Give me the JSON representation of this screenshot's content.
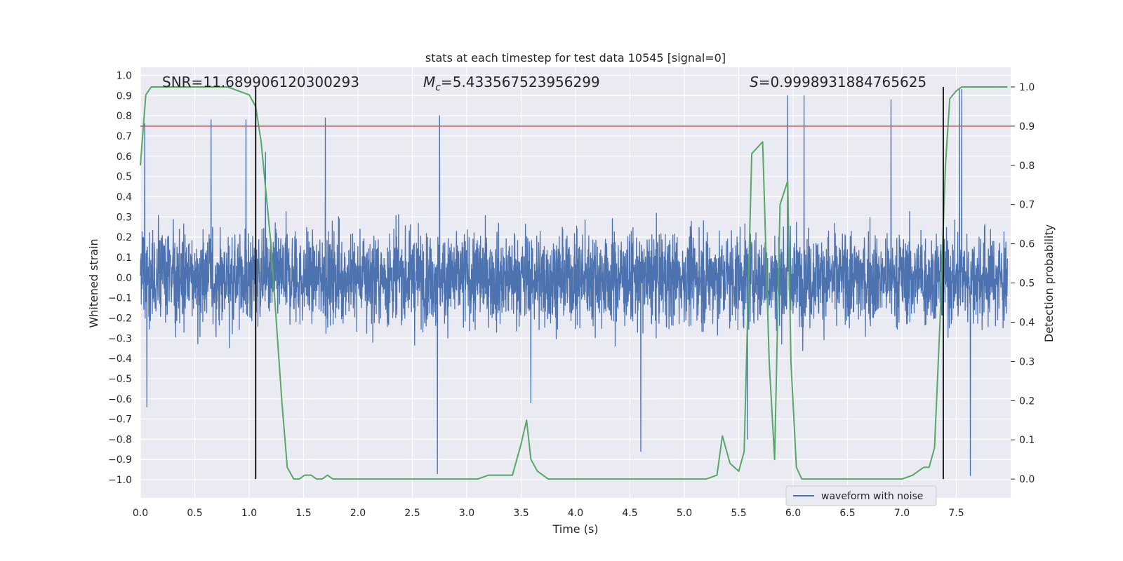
{
  "chart_data": {
    "type": "line",
    "title": "stats at each timestep for test data 10545 [signal=0]",
    "xlabel": "Time (s)",
    "ylabel_left": "Whitened strain",
    "ylabel_right": "Detection probability",
    "xlim": [
      0.0,
      8.0
    ],
    "ylim_left": [
      -1.09,
      1.04
    ],
    "ylim_right": [
      -0.048,
      1.05
    ],
    "x_ticks": [
      "0.0",
      "0.5",
      "1.0",
      "1.5",
      "2.0",
      "2.5",
      "3.0",
      "3.5",
      "4.0",
      "4.5",
      "5.0",
      "5.5",
      "6.0",
      "6.5",
      "7.0",
      "7.5"
    ],
    "y_left_ticks": [
      "1.0",
      "0.9",
      "0.8",
      "0.7",
      "0.6",
      "0.5",
      "0.4",
      "0.3",
      "0.2",
      "0.1",
      "0.0",
      "-0.1",
      "-0.2",
      "-0.3",
      "-0.4",
      "-0.5",
      "-0.6",
      "-0.7",
      "-0.8",
      "-0.9",
      "-1.0"
    ],
    "y_right_ticks": [
      "1.0",
      "0.9",
      "0.8",
      "0.7",
      "0.6",
      "0.5",
      "0.4",
      "0.3",
      "0.2",
      "0.1",
      "0.0"
    ],
    "grid": true,
    "background": "#eaeaf2",
    "annotations": {
      "snr": "SNR=11.689906120300293",
      "mc_symbol": "M",
      "mc_sub": "c",
      "mc_value": "=5.433567523956299",
      "s_symbol": "S",
      "s_value": "=0.9998931884765625"
    },
    "legend": {
      "label": "waveform with noise",
      "location": "lower-right"
    },
    "threshold": {
      "value_right": 0.9,
      "color": "#c44e52"
    },
    "vertical_markers": [
      1.06,
      7.38
    ],
    "series": [
      {
        "name": "waveform with noise",
        "axis": "left",
        "color": "#4c72b0",
        "envelope_note": "dense noise, values mostly within ±0.35, peaks to about ±1.0",
        "peaks": [
          {
            "x": 0.04,
            "y": 0.76
          },
          {
            "x": 0.06,
            "y": 0.81
          },
          {
            "x": 0.06,
            "y": -0.64
          },
          {
            "x": 0.65,
            "y": 0.78
          },
          {
            "x": 0.97,
            "y": 0.78
          },
          {
            "x": 1.15,
            "y": 0.62
          },
          {
            "x": 1.7,
            "y": 0.79
          },
          {
            "x": 2.75,
            "y": 0.8
          },
          {
            "x": 2.73,
            "y": -0.97
          },
          {
            "x": 3.59,
            "y": -0.62
          },
          {
            "x": 4.6,
            "y": -0.86
          },
          {
            "x": 5.58,
            "y": -0.8
          },
          {
            "x": 5.95,
            "y": 0.9
          },
          {
            "x": 6.1,
            "y": 0.9
          },
          {
            "x": 6.9,
            "y": 0.88
          },
          {
            "x": 7.53,
            "y": 0.93
          },
          {
            "x": 7.63,
            "y": -0.98
          },
          {
            "x": 7.55,
            "y": 0.93
          }
        ]
      },
      {
        "name": "",
        "axis": "right",
        "color": "#55a868",
        "x": [
          0.0,
          0.05,
          0.1,
          0.2,
          0.4,
          0.6,
          0.8,
          0.9,
          1.0,
          1.06,
          1.11,
          1.2,
          1.3,
          1.35,
          1.41,
          1.46,
          1.51,
          1.57,
          1.62,
          1.67,
          1.72,
          1.77,
          1.87,
          1.97,
          2.1,
          2.3,
          2.5,
          2.7,
          2.9,
          3.1,
          3.2,
          3.27,
          3.35,
          3.42,
          3.5,
          3.55,
          3.59,
          3.65,
          3.75,
          3.85,
          4.0,
          4.2,
          4.4,
          4.5,
          4.6,
          4.7,
          4.8,
          4.9,
          5.0,
          5.1,
          5.2,
          5.3,
          5.35,
          5.42,
          5.5,
          5.55,
          5.62,
          5.72,
          5.78,
          5.83,
          5.88,
          5.95,
          5.98,
          6.03,
          6.08,
          6.15,
          6.2,
          6.25,
          6.3,
          6.4,
          6.6,
          6.8,
          7.0,
          7.1,
          7.15,
          7.2,
          7.25,
          7.3,
          7.35,
          7.4,
          7.44,
          7.5,
          7.55,
          7.65,
          7.8,
          7.97
        ],
        "y": [
          0.8,
          0.98,
          1.0,
          1.0,
          1.0,
          1.0,
          1.0,
          0.99,
          0.98,
          0.95,
          0.86,
          0.6,
          0.2,
          0.03,
          0.0,
          0.0,
          0.01,
          0.01,
          0.0,
          0.0,
          0.01,
          0.0,
          0.0,
          0.0,
          0.0,
          0.0,
          0.0,
          0.0,
          0.0,
          0.0,
          0.01,
          0.01,
          0.01,
          0.01,
          0.09,
          0.15,
          0.05,
          0.02,
          0.0,
          0.0,
          0.0,
          0.0,
          0.0,
          0.0,
          0.0,
          0.0,
          0.0,
          0.0,
          0.0,
          0.0,
          0.0,
          0.01,
          0.11,
          0.04,
          0.02,
          0.07,
          0.83,
          0.86,
          0.3,
          0.05,
          0.7,
          0.76,
          0.3,
          0.03,
          0.0,
          0.0,
          0.0,
          0.0,
          0.0,
          0.0,
          0.0,
          0.0,
          0.0,
          0.01,
          0.02,
          0.03,
          0.03,
          0.08,
          0.4,
          0.8,
          0.97,
          0.99,
          1.0,
          1.0,
          1.0,
          1.0
        ]
      }
    ]
  }
}
